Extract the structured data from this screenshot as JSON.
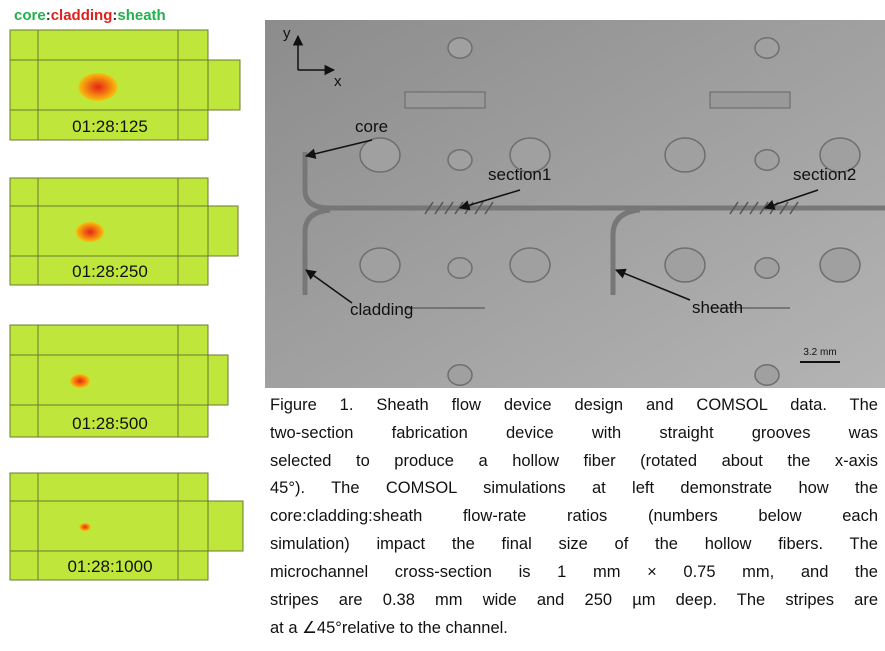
{
  "header": {
    "parts": [
      {
        "text": "core",
        "color": "#22b14c"
      },
      {
        "text": ":",
        "color": "#333333"
      },
      {
        "text": "cladding",
        "color": "#e0201b"
      },
      {
        "text": ":",
        "color": "#333333"
      },
      {
        "text": "sheath",
        "color": "#22b14c"
      }
    ]
  },
  "simulations": [
    {
      "label": "01:28:125"
    },
    {
      "label": "01:28:250"
    },
    {
      "label": "01:28:500"
    },
    {
      "label": "01:28:1000"
    }
  ],
  "image": {
    "axis_y": "y",
    "axis_x": "x",
    "labels": {
      "core": "core",
      "section1": "section1",
      "section2": "section2",
      "cladding": "cladding",
      "sheath": "sheath"
    },
    "scale_bar": "3.2 mm"
  },
  "caption": {
    "lines": [
      "Figure 1. Sheath flow device design and COMSOL data. The",
      "two-section fabrication device with straight grooves was",
      "selected to produce a hollow fiber (rotated about the x-axis",
      "45°). The COMSOL simulations at left demonstrate how the",
      "core:cladding:sheath flow-rate ratios (numbers below each",
      "simulation) impact the final size of the hollow fibers. The",
      "microchannel cross-section is 1 mm × 0.75 mm, and the",
      "stripes are 0.38 mm wide and 250 µm deep. The stripes are",
      "at a ∠45°relative to the channel."
    ]
  }
}
